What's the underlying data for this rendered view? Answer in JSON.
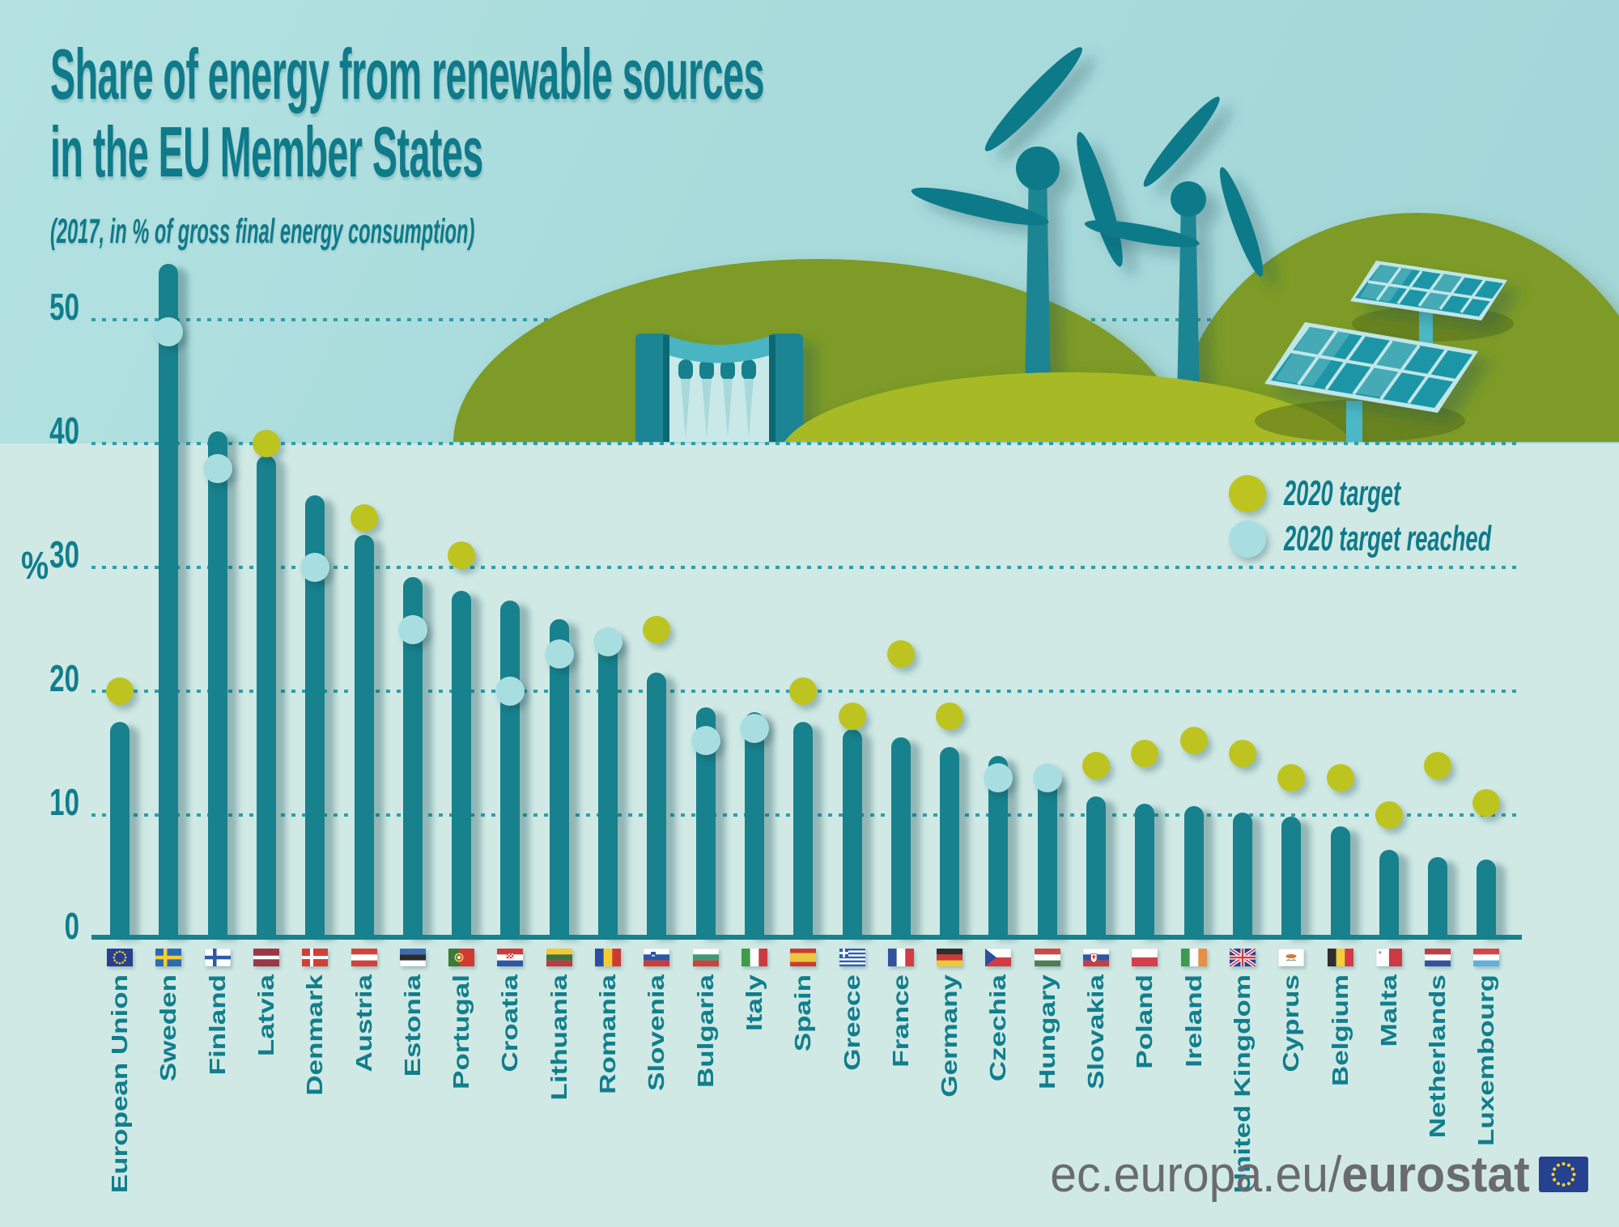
{
  "title": {
    "line1": "Share of energy from renewable sources",
    "line2": "in the EU Member States"
  },
  "subtitle": "(2017, in % of gross final energy consumption)",
  "y_axis": {
    "unit": "%",
    "ticks": [
      0,
      10,
      20,
      30,
      40,
      50
    ]
  },
  "legend": {
    "target": {
      "label": "2020 target",
      "color": "#bec41f"
    },
    "reached": {
      "label": "2020 target reached",
      "color": "#a9dee1"
    }
  },
  "footer": {
    "site": "ec.europa.eu/",
    "brand": "eurostat",
    "logo_icon": "eu-flag-logo-icon"
  },
  "colors": {
    "sky": "#a9dbdc",
    "ground": "#d0e9e5",
    "bar": "#17818d",
    "gridline": "#2f9fa9",
    "accent_text": "#0f7a8a",
    "tick_text": "#117e8c",
    "dot_target": "#bec41f",
    "dot_reached": "#a9dee1",
    "footer_text": "#6a6b6e",
    "hill_olive": "#7d9b26",
    "hill_bright": "#a7ba28",
    "eu_blue": "#26418f",
    "eu_star_yellow": "#f5d028"
  },
  "decorative_icons": [
    "wind-turbine-icon",
    "solar-panel-icon",
    "hydro-dam-icon",
    "hill-shape"
  ],
  "chart_data": {
    "type": "bar",
    "title": "Share of energy from renewable sources in the EU Member States",
    "subtitle": "(2017, in % of gross final energy consumption)",
    "ylabel": "%",
    "ylim": [
      0,
      56
    ],
    "yticks": [
      0,
      10,
      20,
      30,
      40,
      50
    ],
    "grid": "horizontal-dashed",
    "legend_position": "upper-right",
    "series_semantics": {
      "bar": "2017 share of renewable energy (%)",
      "dot": "2020 target (%)",
      "dot_color_rule": "light-blue dot = target reached, yellow dot = target not yet reached"
    },
    "countries": [
      {
        "name": "European Union",
        "flag": "eu",
        "share_2017": 17.5,
        "target_2020": 20,
        "target_reached": false
      },
      {
        "name": "Sweden",
        "flag": "se",
        "share_2017": 54.5,
        "target_2020": 49,
        "target_reached": true
      },
      {
        "name": "Finland",
        "flag": "fi",
        "share_2017": 41.0,
        "target_2020": 38,
        "target_reached": true
      },
      {
        "name": "Latvia",
        "flag": "lv",
        "share_2017": 39.0,
        "target_2020": 40,
        "target_reached": false
      },
      {
        "name": "Denmark",
        "flag": "dk",
        "share_2017": 35.8,
        "target_2020": 30,
        "target_reached": true
      },
      {
        "name": "Austria",
        "flag": "at",
        "share_2017": 32.6,
        "target_2020": 34,
        "target_reached": false
      },
      {
        "name": "Estonia",
        "flag": "ee",
        "share_2017": 29.2,
        "target_2020": 25,
        "target_reached": true
      },
      {
        "name": "Portugal",
        "flag": "pt",
        "share_2017": 28.1,
        "target_2020": 31,
        "target_reached": false
      },
      {
        "name": "Croatia",
        "flag": "hr",
        "share_2017": 27.3,
        "target_2020": 20,
        "target_reached": true
      },
      {
        "name": "Lithuania",
        "flag": "lt",
        "share_2017": 25.8,
        "target_2020": 23,
        "target_reached": true
      },
      {
        "name": "Romania",
        "flag": "ro",
        "share_2017": 24.5,
        "target_2020": 24,
        "target_reached": true
      },
      {
        "name": "Slovenia",
        "flag": "si",
        "share_2017": 21.5,
        "target_2020": 25,
        "target_reached": false
      },
      {
        "name": "Bulgaria",
        "flag": "bg",
        "share_2017": 18.7,
        "target_2020": 16,
        "target_reached": true
      },
      {
        "name": "Italy",
        "flag": "it",
        "share_2017": 18.3,
        "target_2020": 17,
        "target_reached": true
      },
      {
        "name": "Spain",
        "flag": "es",
        "share_2017": 17.5,
        "target_2020": 20,
        "target_reached": false
      },
      {
        "name": "Greece",
        "flag": "el",
        "share_2017": 16.9,
        "target_2020": 18,
        "target_reached": false
      },
      {
        "name": "France",
        "flag": "fr",
        "share_2017": 16.3,
        "target_2020": 23,
        "target_reached": false
      },
      {
        "name": "Germany",
        "flag": "de",
        "share_2017": 15.5,
        "target_2020": 18,
        "target_reached": false
      },
      {
        "name": "Czechia",
        "flag": "cz",
        "share_2017": 14.8,
        "target_2020": 13,
        "target_reached": true
      },
      {
        "name": "Hungary",
        "flag": "hu",
        "share_2017": 13.3,
        "target_2020": 13,
        "target_reached": true
      },
      {
        "name": "Slovakia",
        "flag": "sk",
        "share_2017": 11.5,
        "target_2020": 14,
        "target_reached": false
      },
      {
        "name": "Poland",
        "flag": "pl",
        "share_2017": 10.9,
        "target_2020": 15,
        "target_reached": false
      },
      {
        "name": "Ireland",
        "flag": "ie",
        "share_2017": 10.7,
        "target_2020": 16,
        "target_reached": false
      },
      {
        "name": "United Kingdom",
        "flag": "uk",
        "share_2017": 10.2,
        "target_2020": 15,
        "target_reached": false
      },
      {
        "name": "Cyprus",
        "flag": "cy",
        "share_2017": 9.9,
        "target_2020": 13,
        "target_reached": false
      },
      {
        "name": "Belgium",
        "flag": "be",
        "share_2017": 9.1,
        "target_2020": 13,
        "target_reached": false
      },
      {
        "name": "Malta",
        "flag": "mt",
        "share_2017": 7.2,
        "target_2020": 10,
        "target_reached": false
      },
      {
        "name": "Netherlands",
        "flag": "nl",
        "share_2017": 6.6,
        "target_2020": 14,
        "target_reached": false
      },
      {
        "name": "Luxembourg",
        "flag": "lu",
        "share_2017": 6.4,
        "target_2020": 11,
        "target_reached": false
      }
    ]
  }
}
